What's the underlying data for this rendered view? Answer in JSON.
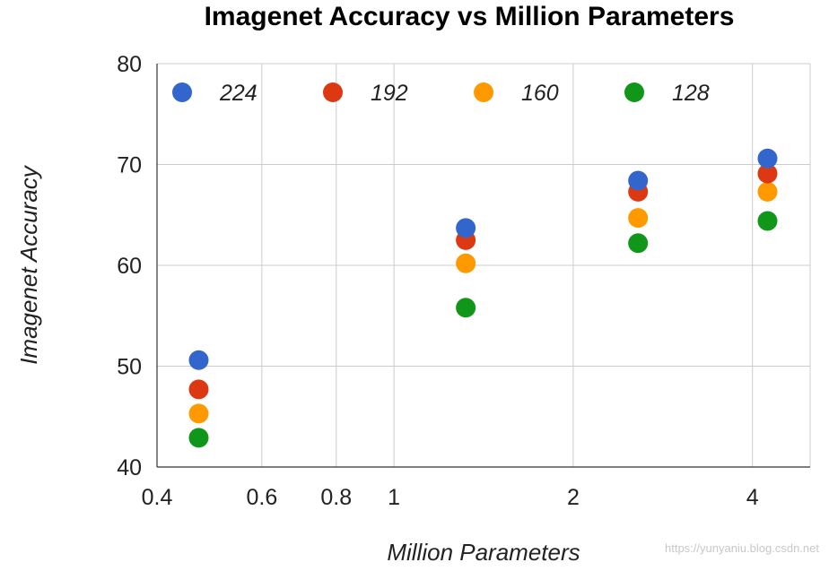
{
  "chart_data": {
    "type": "scatter",
    "title": "Imagenet Accuracy vs Million Parameters",
    "xlabel": "Million Parameters",
    "ylabel": "Imagenet Accuracy",
    "x_scale": "log",
    "xlim": [
      0.4,
      5.0
    ],
    "ylim": [
      40,
      80
    ],
    "x_ticks": [
      0.4,
      0.6,
      0.8,
      1,
      2,
      4
    ],
    "x_tick_labels": [
      "0.4",
      "0.6",
      "0.8",
      "1",
      "2",
      "4"
    ],
    "y_ticks": [
      40,
      50,
      60,
      70,
      80
    ],
    "y_tick_labels": [
      "40",
      "50",
      "60",
      "70",
      "80"
    ],
    "grid": true,
    "legend_position": "top-inside",
    "series": [
      {
        "name": "224",
        "color": "#3366cc",
        "points": [
          {
            "x": 0.47,
            "y": 50.6
          },
          {
            "x": 1.32,
            "y": 63.7
          },
          {
            "x": 2.57,
            "y": 68.4
          },
          {
            "x": 4.24,
            "y": 70.6
          }
        ]
      },
      {
        "name": "192",
        "color": "#dc3912",
        "points": [
          {
            "x": 0.47,
            "y": 47.7
          },
          {
            "x": 1.32,
            "y": 62.5
          },
          {
            "x": 2.57,
            "y": 67.3
          },
          {
            "x": 4.24,
            "y": 69.1
          }
        ]
      },
      {
        "name": "160",
        "color": "#ff9900",
        "points": [
          {
            "x": 0.47,
            "y": 45.3
          },
          {
            "x": 1.32,
            "y": 60.2
          },
          {
            "x": 2.57,
            "y": 64.7
          },
          {
            "x": 4.24,
            "y": 67.3
          }
        ]
      },
      {
        "name": "128",
        "color": "#109618",
        "points": [
          {
            "x": 0.47,
            "y": 42.9
          },
          {
            "x": 1.32,
            "y": 55.8
          },
          {
            "x": 2.57,
            "y": 62.2
          },
          {
            "x": 4.24,
            "y": 64.4
          }
        ]
      }
    ]
  },
  "watermark": "https://yunyaniu.blog.csdn.net"
}
